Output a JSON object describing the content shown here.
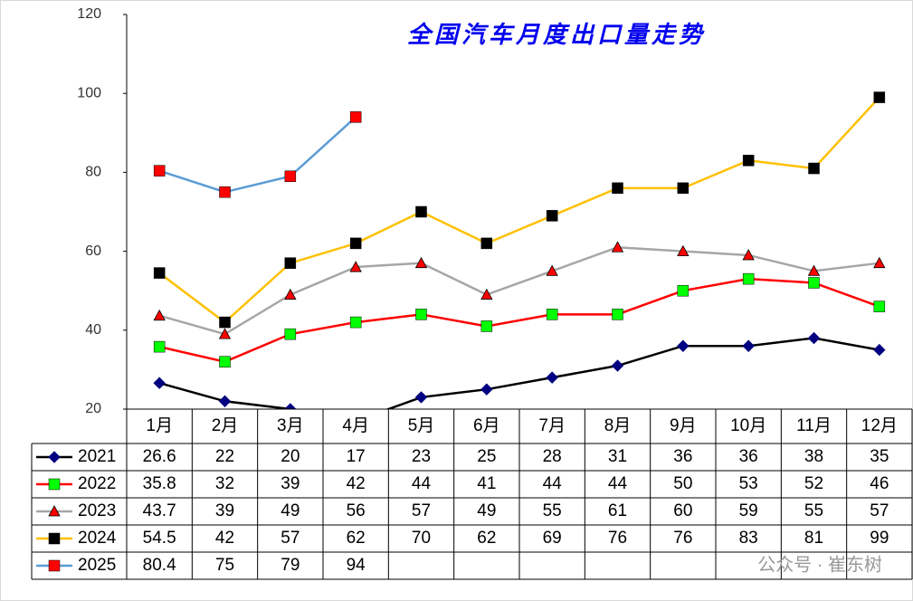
{
  "chart_data": {
    "type": "line",
    "title": "全国汽车月度出口量走势",
    "categories": [
      "1月",
      "2月",
      "3月",
      "4月",
      "5月",
      "6月",
      "7月",
      "8月",
      "9月",
      "10月",
      "11月",
      "12月"
    ],
    "ylim": [
      20,
      120
    ],
    "yticks": [
      20,
      40,
      60,
      80,
      100,
      120
    ],
    "grid": false,
    "series": [
      {
        "name": "2021",
        "color": "#000000",
        "marker": "diamond",
        "marker_color": "#000080",
        "values": [
          26.6,
          22,
          20,
          17,
          23,
          25,
          28,
          31,
          36,
          36,
          38,
          35
        ]
      },
      {
        "name": "2022",
        "color": "#ff0000",
        "marker": "square",
        "marker_color": "#00ff00",
        "values": [
          35.8,
          32,
          39,
          42,
          44,
          41,
          44,
          44,
          50,
          53,
          52,
          46
        ]
      },
      {
        "name": "2023",
        "color": "#a6a6a6",
        "marker": "triangle",
        "marker_color": "#ff0000",
        "values": [
          43.7,
          39,
          49,
          56,
          57,
          49,
          55,
          61,
          60,
          59,
          55,
          57
        ]
      },
      {
        "name": "2024",
        "color": "#ffc000",
        "marker": "square",
        "marker_color": "#000000",
        "values": [
          54.5,
          42,
          57,
          62,
          70,
          62,
          69,
          76,
          76,
          83,
          81,
          99
        ]
      },
      {
        "name": "2025",
        "color": "#5b9bd5",
        "marker": "square",
        "marker_color": "#ff0000",
        "values": [
          80.4,
          75,
          79,
          94,
          null,
          null,
          null,
          null,
          null,
          null,
          null,
          null
        ]
      }
    ],
    "watermark": "公众号 · 崔东树"
  }
}
